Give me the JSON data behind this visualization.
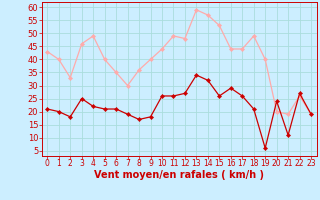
{
  "title": "",
  "xlabel": "Vent moyen/en rafales ( km/h )",
  "ylabel": "",
  "background_color": "#cceeff",
  "grid_color": "#aadddd",
  "x_ticks": [
    0,
    1,
    2,
    3,
    4,
    5,
    6,
    7,
    8,
    9,
    10,
    11,
    12,
    13,
    14,
    15,
    16,
    17,
    18,
    19,
    20,
    21,
    22,
    23
  ],
  "y_ticks": [
    5,
    10,
    15,
    20,
    25,
    30,
    35,
    40,
    45,
    50,
    55,
    60
  ],
  "ylim": [
    3,
    62
  ],
  "xlim": [
    -0.5,
    23.5
  ],
  "mean_values": [
    21,
    20,
    18,
    25,
    22,
    21,
    21,
    19,
    17,
    18,
    26,
    26,
    27,
    34,
    32,
    26,
    29,
    26,
    21,
    6,
    24,
    11,
    27,
    19
  ],
  "gust_values": [
    43,
    40,
    33,
    46,
    49,
    40,
    35,
    30,
    36,
    40,
    44,
    49,
    48,
    59,
    57,
    53,
    44,
    44,
    49,
    40,
    20,
    19,
    26,
    19
  ],
  "mean_color": "#cc0000",
  "gust_color": "#ffaaaa",
  "line_width": 0.9,
  "marker_size": 2.2,
  "tick_label_color": "#cc0000",
  "xlabel_color": "#cc0000",
  "axis_color": "#cc0000",
  "xlabel_fontsize": 7.0,
  "ytick_fontsize": 6.0,
  "xtick_fontsize": 5.5
}
